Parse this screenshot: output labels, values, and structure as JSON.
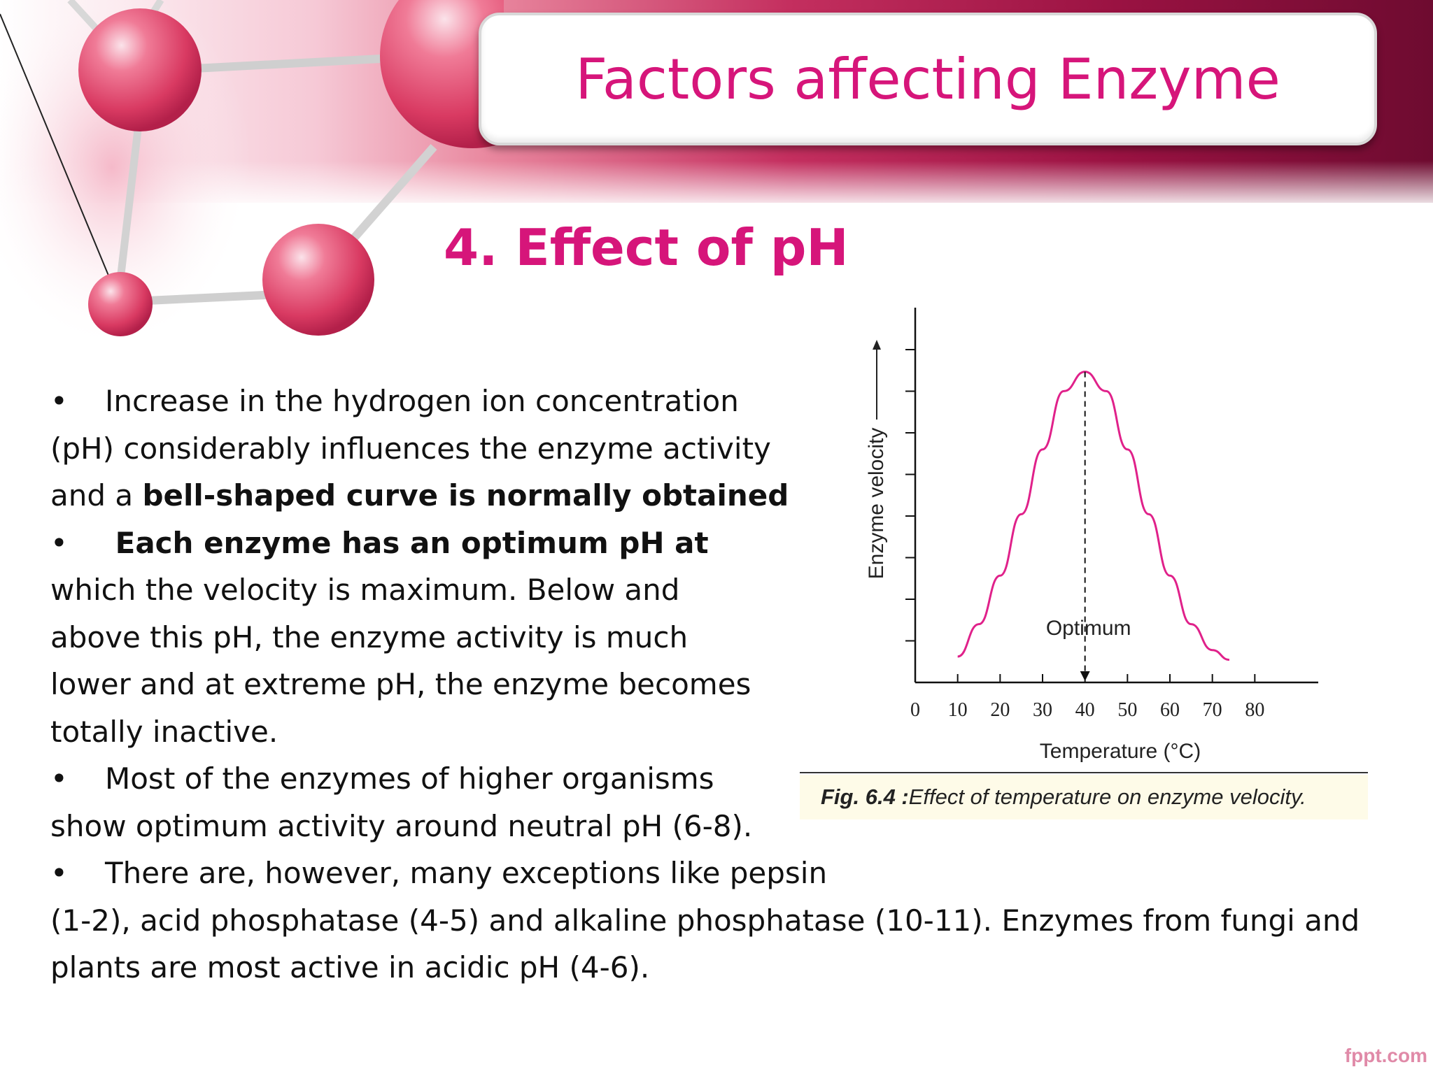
{
  "slide": {
    "title": "Factors affecting Enzyme",
    "heading": "4. Effect of pH",
    "bullet_glyph": "•",
    "body": {
      "b1_line1": "Increase in the hydrogen ion concentration",
      "b1_line2": " (pH) considerably influences the enzyme activity",
      "b1_line3_plain": "and a ",
      "b1_line3_bold": "bell-shaped curve is normally obtained",
      "b2_line1_bold": " Each enzyme has an optimum pH at",
      "b2_line2": "which the velocity is maximum. Below and",
      "b2_line3": "above this pH, the enzyme activity is much",
      "b2_line4": "lower and at extreme pH, the enzyme becomes",
      "b2_line5": "totally inactive.",
      "b3_line1": "Most of the enzymes of higher organisms",
      "b3_line2": "show optimum activity around neutral pH (6-8).",
      "b4_line1": "There are, however, many exceptions like pepsin",
      "b4_line2": "(1-2), acid phosphatase (4-5) and alkaline phosphatase (10-11). Enzymes from fungi and",
      "b4_line3": "plants are most active in acidic pH (4-6)."
    },
    "caption_bold": "Fig. 6.4 :",
    "caption_text": " Effect of temperature on enzyme velocity.",
    "footer": "fppt.com"
  },
  "colors": {
    "accent": "#d6157a",
    "curve": "#e0218a"
  },
  "chart_data": {
    "type": "line",
    "xlabel": "Temperature (°C)",
    "ylabel": "Enzyme velocity",
    "x_ticks": [
      "0",
      "10",
      "20",
      "30",
      "40",
      "50",
      "60",
      "70",
      "80"
    ],
    "xlim": [
      0,
      90
    ],
    "annotation": "Optimum",
    "optimum_x": 40,
    "series": [
      {
        "x": [
          10,
          15,
          20,
          25,
          30,
          35,
          40,
          45,
          50,
          55,
          60,
          65,
          70,
          74
        ],
        "values": [
          0.08,
          0.18,
          0.33,
          0.52,
          0.72,
          0.9,
          0.96,
          0.9,
          0.72,
          0.52,
          0.33,
          0.18,
          0.1,
          0.07
        ]
      }
    ],
    "ylim": [
      0,
      1.05
    ],
    "y_tick_count": 8,
    "grid": false
  }
}
